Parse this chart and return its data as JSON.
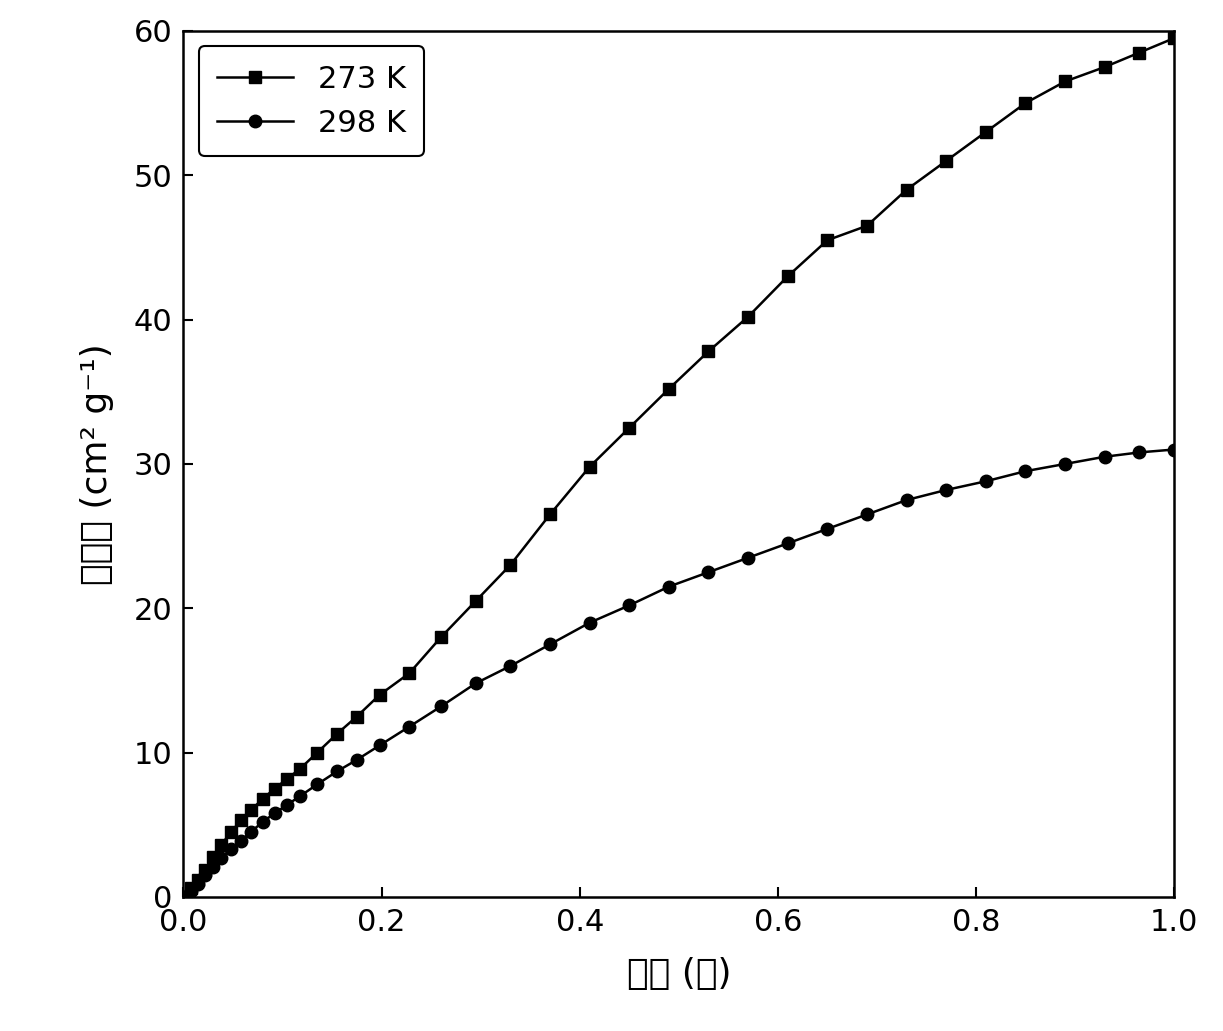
{
  "title": "",
  "xlabel": "压力 (巴)",
  "ylabel": "吸附量 (cm² g⁻¹)",
  "xlim": [
    0,
    1.0
  ],
  "ylim": [
    0,
    60
  ],
  "xticks": [
    0.0,
    0.2,
    0.4,
    0.6,
    0.8,
    1.0
  ],
  "yticks": [
    0,
    10,
    20,
    30,
    40,
    50,
    60
  ],
  "series_273K": {
    "label": "273 K",
    "marker": "s",
    "x": [
      0.0,
      0.008,
      0.015,
      0.022,
      0.03,
      0.038,
      0.048,
      0.058,
      0.068,
      0.08,
      0.092,
      0.105,
      0.118,
      0.135,
      0.155,
      0.175,
      0.198,
      0.228,
      0.26,
      0.295,
      0.33,
      0.37,
      0.41,
      0.45,
      0.49,
      0.53,
      0.57,
      0.61,
      0.65,
      0.69,
      0.73,
      0.77,
      0.81,
      0.85,
      0.89,
      0.93,
      0.965,
      1.0
    ],
    "y": [
      0.0,
      0.6,
      1.2,
      1.9,
      2.8,
      3.6,
      4.5,
      5.3,
      6.0,
      6.8,
      7.5,
      8.2,
      8.9,
      10.0,
      11.3,
      12.5,
      14.0,
      15.5,
      18.0,
      20.5,
      23.0,
      26.5,
      29.8,
      32.5,
      35.2,
      37.8,
      40.2,
      43.0,
      45.5,
      46.5,
      49.0,
      51.0,
      53.0,
      55.0,
      56.5,
      57.5,
      58.5,
      59.5
    ]
  },
  "series_298K": {
    "label": "298 K",
    "marker": "o",
    "x": [
      0.0,
      0.008,
      0.015,
      0.022,
      0.03,
      0.038,
      0.048,
      0.058,
      0.068,
      0.08,
      0.092,
      0.105,
      0.118,
      0.135,
      0.155,
      0.175,
      0.198,
      0.228,
      0.26,
      0.295,
      0.33,
      0.37,
      0.41,
      0.45,
      0.49,
      0.53,
      0.57,
      0.61,
      0.65,
      0.69,
      0.73,
      0.77,
      0.81,
      0.85,
      0.89,
      0.93,
      0.965,
      1.0
    ],
    "y": [
      0.0,
      0.4,
      0.9,
      1.5,
      2.1,
      2.7,
      3.3,
      3.9,
      4.5,
      5.2,
      5.8,
      6.4,
      7.0,
      7.8,
      8.7,
      9.5,
      10.5,
      11.8,
      13.2,
      14.8,
      16.0,
      17.5,
      19.0,
      20.2,
      21.5,
      22.5,
      23.5,
      24.5,
      25.5,
      26.5,
      27.5,
      28.2,
      28.8,
      29.5,
      30.0,
      30.5,
      30.8,
      31.0
    ]
  },
  "line_color": "#000000",
  "background_color": "#ffffff",
  "marker_size": 9,
  "line_width": 1.8,
  "tick_fontsize": 22,
  "label_fontsize": 26,
  "legend_fontsize": 22
}
